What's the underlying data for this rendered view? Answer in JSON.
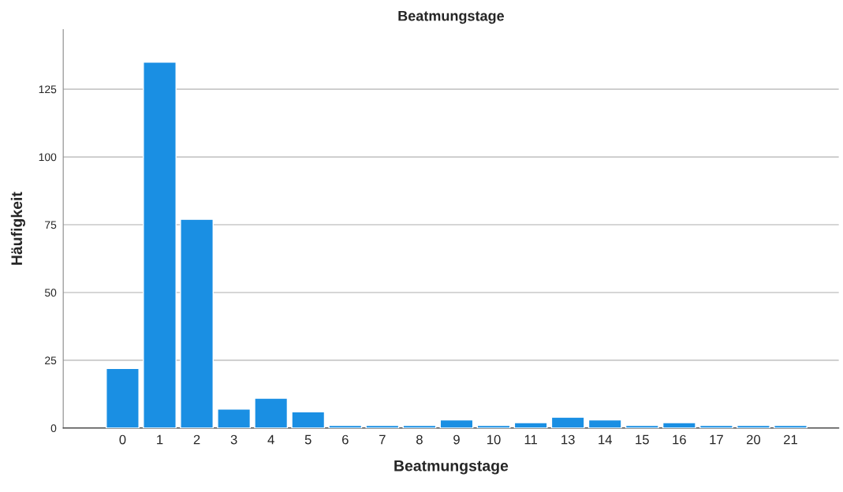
{
  "chart_data": {
    "type": "bar",
    "title": "Beatmungstage",
    "xlabel": "Beatmungstage",
    "ylabel": "Häufigkeit",
    "categories": [
      "0",
      "1",
      "2",
      "3",
      "4",
      "5",
      "6",
      "7",
      "8",
      "9",
      "10",
      "11",
      "13",
      "14",
      "15",
      "16",
      "17",
      "20",
      "21"
    ],
    "values": [
      22,
      135,
      77,
      7,
      11,
      6,
      1,
      1,
      1,
      3,
      1,
      2,
      4,
      3,
      1,
      2,
      1,
      1,
      1
    ],
    "color": "#1a8fe3",
    "ylim": [
      0,
      147
    ],
    "yticks": [
      0,
      25,
      50,
      75,
      100,
      125
    ],
    "grid": "y",
    "legend": false
  }
}
